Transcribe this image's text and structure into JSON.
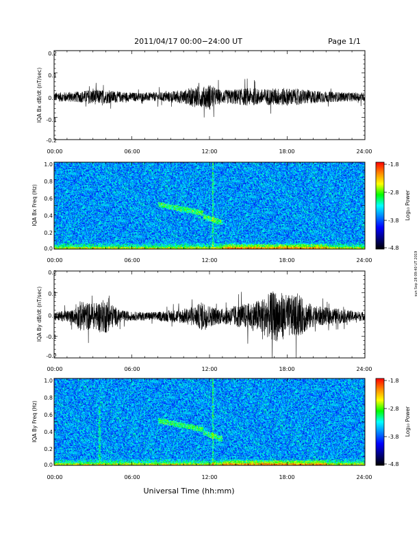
{
  "header": {
    "title": "2011/04/17  00:00−24:00 UT",
    "page": "Page 1/1"
  },
  "footer": {
    "xlabel": "Universal Time (hh:mm)"
  },
  "side_stamp": "sun Sep 28 09:40 UT 2019",
  "colorbar": {
    "label": "Log₁₀ Power",
    "ticks": [
      "-1.8",
      "-2.8",
      "-3.8",
      "-4.8"
    ],
    "colors": [
      "#ff0000",
      "#ff8800",
      "#ffff00",
      "#00ff00",
      "#00ffff",
      "#0080ff",
      "#0000ff",
      "#000080",
      "#000000"
    ]
  },
  "chart_data": [
    {
      "type": "line",
      "ylabel": "IQA Bx dB/dt (nT/sec)",
      "xlim": [
        0,
        24
      ],
      "ylim": [
        -0.2,
        0.2
      ],
      "yticks": [
        "0.2",
        "0.1",
        "0.0",
        "-0.1",
        "-0.2"
      ],
      "xticks": [
        "00:00",
        "06:00",
        "12:00",
        "18:00",
        "24:00"
      ],
      "envelope": {
        "hours": [
          0,
          2,
          3,
          4,
          6,
          8,
          10,
          11,
          11.5,
          12,
          12.5,
          13,
          14,
          15,
          16,
          17,
          18,
          19,
          20,
          21,
          22,
          23,
          24
        ],
        "amplitude": [
          0.02,
          0.025,
          0.035,
          0.03,
          0.02,
          0.02,
          0.03,
          0.05,
          0.045,
          0.06,
          0.04,
          0.03,
          0.035,
          0.04,
          0.035,
          0.04,
          0.04,
          0.035,
          0.03,
          0.025,
          0.022,
          0.02,
          0.02
        ]
      }
    },
    {
      "type": "heatmap",
      "ylabel": "IQA Bx Freq (Hz)",
      "xlim": [
        0,
        24
      ],
      "ylim": [
        0.0,
        1.0
      ],
      "yticks": [
        "1.0",
        "0.8",
        "0.6",
        "0.4",
        "0.2",
        "0.0"
      ],
      "xticks": [
        "00:00",
        "06:00",
        "12:00",
        "18:00",
        "24:00"
      ],
      "zlim": [
        -4.8,
        -1.8
      ]
    },
    {
      "type": "line",
      "ylabel": "IQA By dB/dt (nT/sec)",
      "xlim": [
        0,
        24
      ],
      "ylim": [
        -0.2,
        0.2
      ],
      "yticks": [
        "0.2",
        "0.1",
        "0.0",
        "-0.1",
        "-0.2"
      ],
      "xticks": [
        "00:00",
        "06:00",
        "12:00",
        "18:00",
        "24:00"
      ],
      "envelope": {
        "hours": [
          0,
          1.5,
          2,
          3,
          4,
          5,
          6,
          8,
          10,
          11,
          11.5,
          12,
          12.5,
          13,
          14,
          15,
          16,
          17,
          18,
          19,
          20,
          21,
          22,
          23,
          24
        ],
        "amplitude": [
          0.02,
          0.03,
          0.07,
          0.06,
          0.08,
          0.03,
          0.02,
          0.02,
          0.035,
          0.05,
          0.07,
          0.05,
          0.04,
          0.035,
          0.05,
          0.06,
          0.08,
          0.12,
          0.1,
          0.09,
          0.05,
          0.04,
          0.035,
          0.025,
          0.02
        ]
      }
    },
    {
      "type": "heatmap",
      "ylabel": "IQA By Freq (Hz)",
      "xlim": [
        0,
        24
      ],
      "ylim": [
        0.0,
        1.0
      ],
      "yticks": [
        "1.0",
        "0.8",
        "0.6",
        "0.4",
        "0.2",
        "0.0"
      ],
      "xticks": [
        "00:00",
        "06:00",
        "12:00",
        "18:00",
        "24:00"
      ],
      "zlim": [
        -4.8,
        -1.8
      ]
    }
  ]
}
